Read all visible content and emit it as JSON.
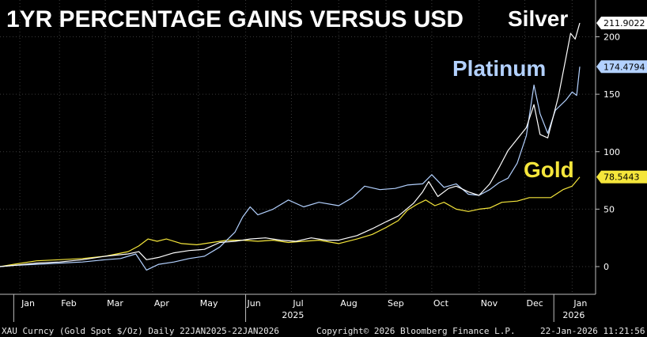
{
  "chart_data": {
    "type": "line",
    "title": "1YR PERCENTAGE GAINS VERSUS USD",
    "y_ticks": [
      0,
      50,
      100,
      150,
      200
    ],
    "ylim": [
      -20,
      222
    ],
    "x_ticks": [
      "Jan",
      "Feb",
      "Mar",
      "Apr",
      "May",
      "Jun",
      "Jul",
      "Aug",
      "Sep",
      "Oct",
      "Nov",
      "Dec",
      "Jan"
    ],
    "x_tick_days": [
      4,
      30,
      60,
      91,
      121,
      152,
      182,
      213,
      244,
      274,
      305,
      335,
      366
    ],
    "year_labels": [
      {
        "label": "2025",
        "day": 182
      },
      {
        "label": "2026",
        "day": 366
      }
    ],
    "x_range_days": [
      -9,
      371
    ],
    "series": [
      {
        "name": "Silver",
        "color": "#ffffff",
        "last_value": "211.9022",
        "points": [
          [
            -9,
            0
          ],
          [
            0,
            1
          ],
          [
            15,
            3
          ],
          [
            30,
            4
          ],
          [
            45,
            6
          ],
          [
            60,
            9
          ],
          [
            75,
            11
          ],
          [
            82,
            13
          ],
          [
            87,
            6
          ],
          [
            95,
            8
          ],
          [
            105,
            12
          ],
          [
            115,
            14
          ],
          [
            125,
            15
          ],
          [
            135,
            21
          ],
          [
            145,
            22
          ],
          [
            155,
            24
          ],
          [
            165,
            25
          ],
          [
            175,
            23
          ],
          [
            185,
            22
          ],
          [
            195,
            25
          ],
          [
            205,
            23
          ],
          [
            213,
            23
          ],
          [
            225,
            27
          ],
          [
            235,
            33
          ],
          [
            244,
            39
          ],
          [
            252,
            44
          ],
          [
            262,
            55
          ],
          [
            268,
            65
          ],
          [
            272,
            74
          ],
          [
            278,
            61
          ],
          [
            285,
            68
          ],
          [
            290,
            70
          ],
          [
            298,
            65
          ],
          [
            305,
            62
          ],
          [
            312,
            72
          ],
          [
            318,
            86
          ],
          [
            324,
            101
          ],
          [
            330,
            111
          ],
          [
            336,
            121
          ],
          [
            341,
            141
          ],
          [
            345,
            115
          ],
          [
            350,
            112
          ],
          [
            357,
            148
          ],
          [
            362,
            182
          ],
          [
            365,
            203
          ],
          [
            368,
            198
          ],
          [
            371,
            212
          ]
        ]
      },
      {
        "name": "Platinum",
        "color": "#b3d1ff",
        "last_value": "174.4794",
        "points": [
          [
            -9,
            0
          ],
          [
            0,
            1
          ],
          [
            15,
            2
          ],
          [
            30,
            3
          ],
          [
            45,
            4
          ],
          [
            60,
            6
          ],
          [
            70,
            7
          ],
          [
            80,
            11
          ],
          [
            87,
            -3
          ],
          [
            95,
            2
          ],
          [
            105,
            4
          ],
          [
            115,
            7
          ],
          [
            125,
            9
          ],
          [
            135,
            17
          ],
          [
            145,
            30
          ],
          [
            150,
            43
          ],
          [
            155,
            52
          ],
          [
            160,
            45
          ],
          [
            170,
            50
          ],
          [
            180,
            58
          ],
          [
            190,
            52
          ],
          [
            200,
            56
          ],
          [
            213,
            53
          ],
          [
            222,
            60
          ],
          [
            230,
            70
          ],
          [
            240,
            67
          ],
          [
            250,
            68
          ],
          [
            258,
            71
          ],
          [
            268,
            72
          ],
          [
            274,
            80
          ],
          [
            282,
            69
          ],
          [
            290,
            72
          ],
          [
            298,
            63
          ],
          [
            305,
            62
          ],
          [
            312,
            67
          ],
          [
            318,
            73
          ],
          [
            324,
            77
          ],
          [
            330,
            90
          ],
          [
            336,
            114
          ],
          [
            341,
            158
          ],
          [
            345,
            133
          ],
          [
            350,
            116
          ],
          [
            355,
            136
          ],
          [
            362,
            145
          ],
          [
            366,
            152
          ],
          [
            369,
            149
          ],
          [
            371,
            174
          ]
        ]
      },
      {
        "name": "Gold",
        "color": "#f5e63b",
        "last_value": "78.5443",
        "points": [
          [
            -9,
            0
          ],
          [
            0,
            2
          ],
          [
            15,
            5
          ],
          [
            30,
            6
          ],
          [
            45,
            7
          ],
          [
            60,
            9
          ],
          [
            75,
            13
          ],
          [
            82,
            18
          ],
          [
            88,
            24
          ],
          [
            94,
            22
          ],
          [
            100,
            24
          ],
          [
            110,
            20
          ],
          [
            120,
            19
          ],
          [
            130,
            21
          ],
          [
            140,
            23
          ],
          [
            150,
            23
          ],
          [
            160,
            22
          ],
          [
            170,
            23
          ],
          [
            180,
            21
          ],
          [
            190,
            22
          ],
          [
            200,
            23
          ],
          [
            213,
            20
          ],
          [
            225,
            24
          ],
          [
            235,
            28
          ],
          [
            244,
            34
          ],
          [
            252,
            40
          ],
          [
            258,
            49
          ],
          [
            264,
            54
          ],
          [
            270,
            58
          ],
          [
            276,
            53
          ],
          [
            282,
            56
          ],
          [
            290,
            50
          ],
          [
            298,
            48
          ],
          [
            305,
            50
          ],
          [
            312,
            51
          ],
          [
            320,
            56
          ],
          [
            330,
            57
          ],
          [
            338,
            60
          ],
          [
            345,
            60
          ],
          [
            352,
            60
          ],
          [
            360,
            67
          ],
          [
            366,
            70
          ],
          [
            371,
            78
          ]
        ]
      }
    ]
  },
  "series_labels": {
    "silver": "Silver",
    "platinum": "Platinum",
    "gold": "Gold"
  },
  "footer": {
    "left": "XAU Curncy (Gold Spot  $/Oz) Daily 22JAN2025-22JAN2026",
    "center": "Copyright© 2026 Bloomberg Finance L.P.",
    "right": "22-Jan-2026 11:21:56"
  }
}
